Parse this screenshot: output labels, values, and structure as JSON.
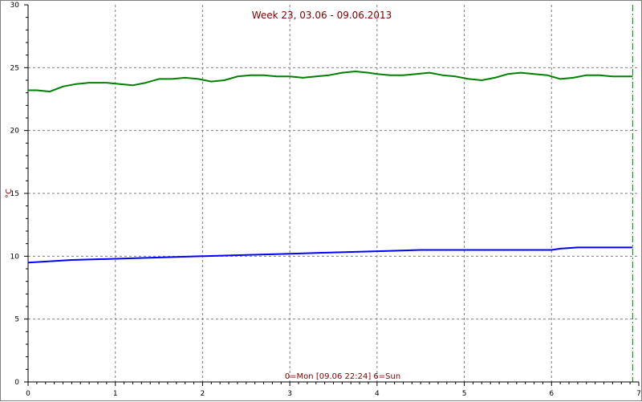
{
  "chart_data": {
    "type": "line",
    "title": "Week 23, 03.06 - 09.06.2013",
    "xlabel": "0=Mon [09.06 22:24] 6=Sun",
    "ylabel": "°C",
    "xlim": [
      0,
      7
    ],
    "ylim": [
      0,
      30
    ],
    "x_ticks": [
      "0",
      "1",
      "2",
      "3",
      "4",
      "5",
      "6",
      "7"
    ],
    "y_ticks": [
      "0",
      "5",
      "10",
      "15",
      "20",
      "25",
      "30"
    ],
    "grid": true,
    "current_time_marker_x": 6.93,
    "colors": {
      "series_1": "#008000",
      "series_2": "#0000ff",
      "title": "#800000",
      "marker": "#008000",
      "grid": "#808080"
    },
    "series": [
      {
        "color": "#008000",
        "x": [
          0,
          0.1,
          0.25,
          0.4,
          0.55,
          0.7,
          0.9,
          1.05,
          1.2,
          1.35,
          1.5,
          1.65,
          1.8,
          1.95,
          2.1,
          2.25,
          2.4,
          2.55,
          2.7,
          2.85,
          3.0,
          3.15,
          3.3,
          3.45,
          3.6,
          3.75,
          3.9,
          4.0,
          4.15,
          4.3,
          4.45,
          4.6,
          4.75,
          4.9,
          5.05,
          5.2,
          5.35,
          5.5,
          5.65,
          5.8,
          5.95,
          6.1,
          6.25,
          6.4,
          6.55,
          6.7,
          6.85,
          6.93
        ],
        "y": [
          23.2,
          23.2,
          23.1,
          23.5,
          23.7,
          23.8,
          23.8,
          23.7,
          23.6,
          23.8,
          24.1,
          24.1,
          24.2,
          24.1,
          23.9,
          24.0,
          24.3,
          24.4,
          24.4,
          24.3,
          24.3,
          24.2,
          24.3,
          24.4,
          24.6,
          24.7,
          24.6,
          24.5,
          24.4,
          24.4,
          24.5,
          24.6,
          24.4,
          24.3,
          24.1,
          24.0,
          24.2,
          24.5,
          24.6,
          24.5,
          24.4,
          24.1,
          24.2,
          24.4,
          24.4,
          24.3,
          24.3,
          24.3
        ]
      },
      {
        "color": "#0000ff",
        "x": [
          0,
          0.5,
          1.0,
          1.5,
          2.0,
          2.5,
          3.0,
          3.5,
          4.0,
          4.5,
          5.0,
          5.5,
          6.0,
          6.1,
          6.3,
          6.6,
          6.93
        ],
        "y": [
          9.5,
          9.7,
          9.8,
          9.9,
          10.0,
          10.1,
          10.2,
          10.3,
          10.4,
          10.5,
          10.5,
          10.5,
          10.5,
          10.6,
          10.7,
          10.7,
          10.7
        ]
      }
    ]
  }
}
